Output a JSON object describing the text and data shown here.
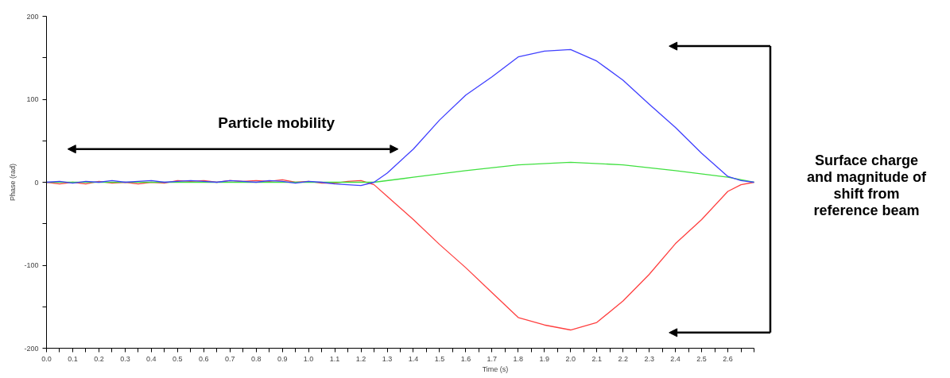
{
  "chart_data": {
    "type": "line",
    "xlabel": "Time (s)",
    "ylabel": "Phase (rad)",
    "xlim": [
      0,
      2.7
    ],
    "ylim": [
      -200,
      200
    ],
    "xticks": [
      {
        "value": 0,
        "label": "0.0"
      },
      {
        "value": 0.05,
        "label": null
      },
      {
        "value": 0.1,
        "label": "0.1"
      },
      {
        "value": 0.15,
        "label": null
      },
      {
        "value": 0.2,
        "label": "0.2"
      },
      {
        "value": 0.25,
        "label": null
      },
      {
        "value": 0.3,
        "label": "0.3"
      },
      {
        "value": 0.35,
        "label": null
      },
      {
        "value": 0.4,
        "label": "0.4"
      },
      {
        "value": 0.45,
        "label": null
      },
      {
        "value": 0.5,
        "label": "0.5"
      },
      {
        "value": 0.55,
        "label": null
      },
      {
        "value": 0.6,
        "label": "0.6"
      },
      {
        "value": 0.65,
        "label": null
      },
      {
        "value": 0.7,
        "label": "0.7"
      },
      {
        "value": 0.75,
        "label": null
      },
      {
        "value": 0.8,
        "label": "0.8"
      },
      {
        "value": 0.85,
        "label": null
      },
      {
        "value": 0.9,
        "label": "0.9"
      },
      {
        "value": 0.95,
        "label": null
      },
      {
        "value": 1.0,
        "label": "1.0"
      },
      {
        "value": 1.05,
        "label": null
      },
      {
        "value": 1.1,
        "label": "1.1"
      },
      {
        "value": 1.15,
        "label": null
      },
      {
        "value": 1.2,
        "label": "1.2"
      },
      {
        "value": 1.25,
        "label": null
      },
      {
        "value": 1.3,
        "label": "1.3"
      },
      {
        "value": 1.35,
        "label": null
      },
      {
        "value": 1.4,
        "label": "1.4"
      },
      {
        "value": 1.45,
        "label": null
      },
      {
        "value": 1.5,
        "label": "1.5"
      },
      {
        "value": 1.55,
        "label": null
      },
      {
        "value": 1.6,
        "label": "1.6"
      },
      {
        "value": 1.65,
        "label": null
      },
      {
        "value": 1.7,
        "label": "1.7"
      },
      {
        "value": 1.75,
        "label": null
      },
      {
        "value": 1.8,
        "label": "1.8"
      },
      {
        "value": 1.85,
        "label": null
      },
      {
        "value": 1.9,
        "label": "1.9"
      },
      {
        "value": 1.95,
        "label": null
      },
      {
        "value": 2.0,
        "label": "2.0"
      },
      {
        "value": 2.05,
        "label": null
      },
      {
        "value": 2.1,
        "label": "2.1"
      },
      {
        "value": 2.15,
        "label": null
      },
      {
        "value": 2.2,
        "label": "2.2"
      },
      {
        "value": 2.25,
        "label": null
      },
      {
        "value": 2.3,
        "label": "2.3"
      },
      {
        "value": 2.35,
        "label": null
      },
      {
        "value": 2.4,
        "label": "2.4"
      },
      {
        "value": 2.45,
        "label": null
      },
      {
        "value": 2.5,
        "label": "2.5"
      },
      {
        "value": 2.55,
        "label": null
      },
      {
        "value": 2.6,
        "label": "2.6"
      },
      {
        "value": 2.65,
        "label": null
      },
      {
        "value": 2.7,
        "label": null
      }
    ],
    "yticks": [
      -200,
      {
        "value": -150,
        "label": null
      },
      -100,
      {
        "value": -50,
        "label": null
      },
      0,
      {
        "value": 50,
        "label": null
      },
      100,
      {
        "value": 150,
        "label": null
      },
      200
    ],
    "grid": false,
    "marker": "none",
    "line_style": "solid",
    "annotations": [
      "Particle mobility",
      "Surface charge and magnitude of shift from reference beam"
    ],
    "series": [
      {
        "color": "#ff4040",
        "x": [
          0,
          0.05,
          0.1,
          0.15,
          0.2,
          0.25,
          0.3,
          0.35,
          0.4,
          0.45,
          0.5,
          0.55,
          0.6,
          0.65,
          0.7,
          0.75,
          0.8,
          0.85,
          0.9,
          0.95,
          1.0,
          1.05,
          1.1,
          1.15,
          1.2,
          1.25,
          1.3,
          1.4,
          1.5,
          1.6,
          1.7,
          1.8,
          1.9,
          2.0,
          2.1,
          2.2,
          2.3,
          2.4,
          2.5,
          2.6,
          2.65,
          2.7
        ],
        "values": [
          0,
          -2,
          0,
          -2,
          1,
          -1,
          0,
          -2,
          0,
          -1,
          2,
          1,
          2,
          0,
          2,
          1,
          2,
          1,
          3,
          0,
          1,
          -1,
          -1,
          1,
          2,
          -3,
          -17,
          -45,
          -75,
          -103,
          -133,
          -163,
          -172,
          -178,
          -169,
          -143,
          -111,
          -74,
          -45,
          -11,
          -3,
          0
        ]
      },
      {
        "color": "#40e040",
        "x": [
          0,
          1.25,
          1.4,
          1.6,
          1.8,
          2.0,
          2.2,
          2.4,
          2.6,
          2.7
        ],
        "values": [
          0,
          0,
          6,
          14,
          21,
          24,
          21,
          14,
          6,
          0
        ]
      },
      {
        "color": "#4040ff",
        "x": [
          0,
          0.05,
          0.1,
          0.15,
          0.2,
          0.25,
          0.3,
          0.35,
          0.4,
          0.45,
          0.5,
          0.55,
          0.6,
          0.65,
          0.7,
          0.75,
          0.8,
          0.85,
          0.9,
          0.95,
          1.0,
          1.05,
          1.1,
          1.15,
          1.2,
          1.25,
          1.3,
          1.4,
          1.5,
          1.6,
          1.7,
          1.8,
          1.9,
          2.0,
          2.1,
          2.2,
          2.3,
          2.4,
          2.5,
          2.6,
          2.65,
          2.7
        ],
        "values": [
          0,
          1,
          -1,
          1,
          0,
          2,
          0,
          1,
          2,
          0,
          1,
          2,
          1,
          0,
          2,
          1,
          0,
          2,
          1,
          -1,
          1,
          0,
          -2,
          -3,
          -4,
          0,
          11,
          40,
          75,
          105,
          127,
          151,
          158,
          160,
          146,
          123,
          94,
          66,
          35,
          7,
          2,
          0
        ]
      }
    ]
  }
}
